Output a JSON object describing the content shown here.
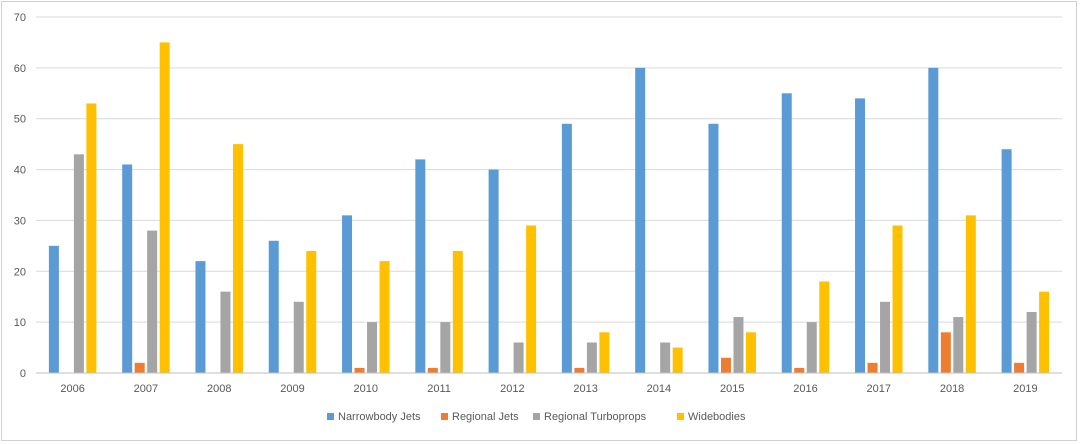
{
  "chart_data": {
    "type": "bar",
    "title": "",
    "xlabel": "",
    "ylabel": "",
    "ylim": [
      0,
      70
    ],
    "y_ticks": [
      0,
      10,
      20,
      30,
      40,
      50,
      60,
      70
    ],
    "grid": "horizontal",
    "legend_position": "bottom",
    "categories": [
      "2006",
      "2007",
      "2008",
      "2009",
      "2010",
      "2011",
      "2012",
      "2013",
      "2014",
      "2015",
      "2016",
      "2017",
      "2018",
      "2019"
    ],
    "series": [
      {
        "name": "Narrowbody Jets",
        "color": "#5B9BD5",
        "values": [
          25,
          41,
          22,
          26,
          31,
          42,
          40,
          49,
          60,
          49,
          55,
          54,
          60,
          44
        ]
      },
      {
        "name": "Regional Jets",
        "color": "#ED7D31",
        "values": [
          0,
          2,
          0,
          0,
          1,
          1,
          0,
          1,
          0,
          3,
          1,
          2,
          8,
          2
        ]
      },
      {
        "name": "Regional Turboprops",
        "color": "#A5A5A5",
        "values": [
          43,
          28,
          16,
          14,
          10,
          10,
          6,
          6,
          6,
          11,
          10,
          14,
          11,
          12
        ]
      },
      {
        "name": "Widebodies",
        "color": "#FFC000",
        "values": [
          53,
          65,
          45,
          24,
          22,
          24,
          29,
          8,
          5,
          8,
          18,
          29,
          31,
          16
        ]
      }
    ]
  }
}
